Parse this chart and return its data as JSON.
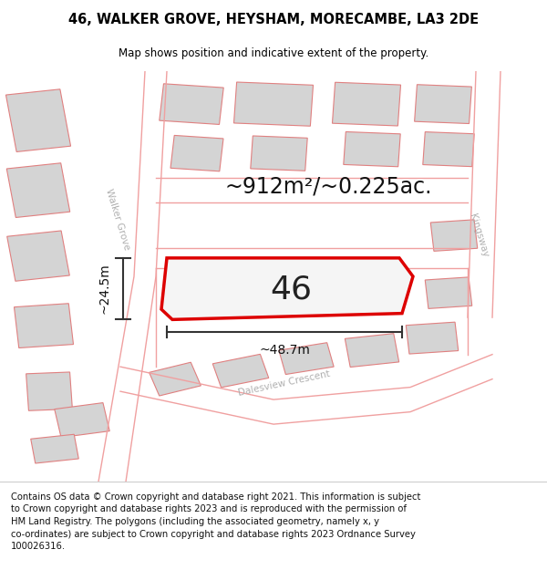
{
  "title": "46, WALKER GROVE, HEYSHAM, MORECAMBE, LA3 2DE",
  "subtitle": "Map shows position and indicative extent of the property.",
  "footer": "Contains OS data © Crown copyright and database right 2021. This information is subject to Crown copyright and database rights 2023 and is reproduced with the permission of HM Land Registry. The polygons (including the associated geometry, namely x, y co-ordinates) are subject to Crown copyright and database rights 2023 Ordnance Survey 100026316.",
  "area_label": "~912m²/~0.225ac.",
  "width_label": "~48.7m",
  "height_label": "~24.5m",
  "number_label": "46",
  "map_bg": "#f2f2f2",
  "road_color": "#f0a0a0",
  "building_color": "#d4d4d4",
  "building_edge": "#e08080",
  "highlight_color": "#dd0000",
  "highlight_fill": "#f5f5f5",
  "street_label_color": "#b0b0b0",
  "dim_line_color": "#333333",
  "title_fontsize": 10.5,
  "subtitle_fontsize": 8.5,
  "footer_fontsize": 7.2,
  "area_fontsize": 17,
  "number_fontsize": 26,
  "dim_fontsize": 10,
  "street_fontsize": 7.5,
  "figsize": [
    6.0,
    6.25
  ],
  "dpi": 100
}
